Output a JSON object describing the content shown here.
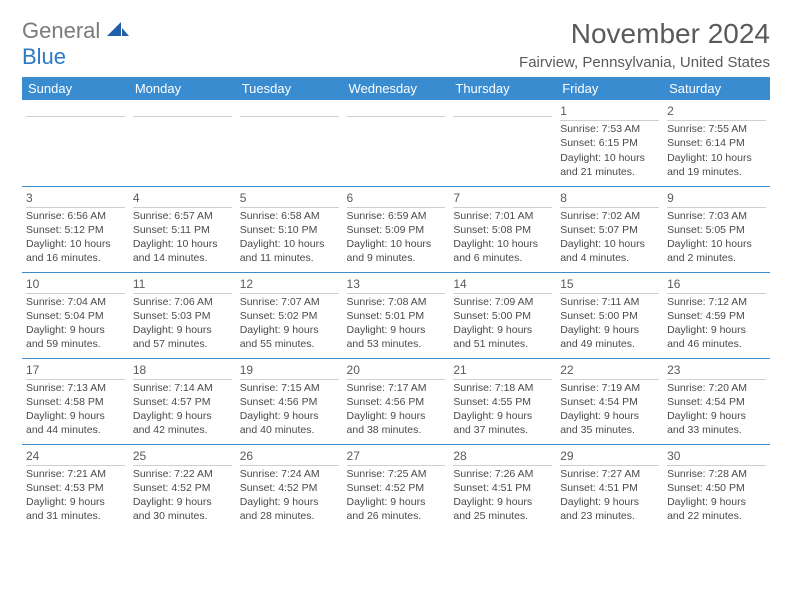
{
  "brand": {
    "general": "General",
    "blue": "Blue"
  },
  "title": "November 2024",
  "location": "Fairview, Pennsylvania, United States",
  "colors": {
    "header_bg": "#3a8cd1",
    "header_fg": "#ffffff",
    "rule": "#3a8cd1",
    "text": "#4a4a4a"
  },
  "day_headers": [
    "Sunday",
    "Monday",
    "Tuesday",
    "Wednesday",
    "Thursday",
    "Friday",
    "Saturday"
  ],
  "weeks": [
    [
      {
        "n": "",
        "sr": "",
        "ss": "",
        "dl": ""
      },
      {
        "n": "",
        "sr": "",
        "ss": "",
        "dl": ""
      },
      {
        "n": "",
        "sr": "",
        "ss": "",
        "dl": ""
      },
      {
        "n": "",
        "sr": "",
        "ss": "",
        "dl": ""
      },
      {
        "n": "",
        "sr": "",
        "ss": "",
        "dl": ""
      },
      {
        "n": "1",
        "sr": "Sunrise: 7:53 AM",
        "ss": "Sunset: 6:15 PM",
        "dl": "Daylight: 10 hours and 21 minutes."
      },
      {
        "n": "2",
        "sr": "Sunrise: 7:55 AM",
        "ss": "Sunset: 6:14 PM",
        "dl": "Daylight: 10 hours and 19 minutes."
      }
    ],
    [
      {
        "n": "3",
        "sr": "Sunrise: 6:56 AM",
        "ss": "Sunset: 5:12 PM",
        "dl": "Daylight: 10 hours and 16 minutes."
      },
      {
        "n": "4",
        "sr": "Sunrise: 6:57 AM",
        "ss": "Sunset: 5:11 PM",
        "dl": "Daylight: 10 hours and 14 minutes."
      },
      {
        "n": "5",
        "sr": "Sunrise: 6:58 AM",
        "ss": "Sunset: 5:10 PM",
        "dl": "Daylight: 10 hours and 11 minutes."
      },
      {
        "n": "6",
        "sr": "Sunrise: 6:59 AM",
        "ss": "Sunset: 5:09 PM",
        "dl": "Daylight: 10 hours and 9 minutes."
      },
      {
        "n": "7",
        "sr": "Sunrise: 7:01 AM",
        "ss": "Sunset: 5:08 PM",
        "dl": "Daylight: 10 hours and 6 minutes."
      },
      {
        "n": "8",
        "sr": "Sunrise: 7:02 AM",
        "ss": "Sunset: 5:07 PM",
        "dl": "Daylight: 10 hours and 4 minutes."
      },
      {
        "n": "9",
        "sr": "Sunrise: 7:03 AM",
        "ss": "Sunset: 5:05 PM",
        "dl": "Daylight: 10 hours and 2 minutes."
      }
    ],
    [
      {
        "n": "10",
        "sr": "Sunrise: 7:04 AM",
        "ss": "Sunset: 5:04 PM",
        "dl": "Daylight: 9 hours and 59 minutes."
      },
      {
        "n": "11",
        "sr": "Sunrise: 7:06 AM",
        "ss": "Sunset: 5:03 PM",
        "dl": "Daylight: 9 hours and 57 minutes."
      },
      {
        "n": "12",
        "sr": "Sunrise: 7:07 AM",
        "ss": "Sunset: 5:02 PM",
        "dl": "Daylight: 9 hours and 55 minutes."
      },
      {
        "n": "13",
        "sr": "Sunrise: 7:08 AM",
        "ss": "Sunset: 5:01 PM",
        "dl": "Daylight: 9 hours and 53 minutes."
      },
      {
        "n": "14",
        "sr": "Sunrise: 7:09 AM",
        "ss": "Sunset: 5:00 PM",
        "dl": "Daylight: 9 hours and 51 minutes."
      },
      {
        "n": "15",
        "sr": "Sunrise: 7:11 AM",
        "ss": "Sunset: 5:00 PM",
        "dl": "Daylight: 9 hours and 49 minutes."
      },
      {
        "n": "16",
        "sr": "Sunrise: 7:12 AM",
        "ss": "Sunset: 4:59 PM",
        "dl": "Daylight: 9 hours and 46 minutes."
      }
    ],
    [
      {
        "n": "17",
        "sr": "Sunrise: 7:13 AM",
        "ss": "Sunset: 4:58 PM",
        "dl": "Daylight: 9 hours and 44 minutes."
      },
      {
        "n": "18",
        "sr": "Sunrise: 7:14 AM",
        "ss": "Sunset: 4:57 PM",
        "dl": "Daylight: 9 hours and 42 minutes."
      },
      {
        "n": "19",
        "sr": "Sunrise: 7:15 AM",
        "ss": "Sunset: 4:56 PM",
        "dl": "Daylight: 9 hours and 40 minutes."
      },
      {
        "n": "20",
        "sr": "Sunrise: 7:17 AM",
        "ss": "Sunset: 4:56 PM",
        "dl": "Daylight: 9 hours and 38 minutes."
      },
      {
        "n": "21",
        "sr": "Sunrise: 7:18 AM",
        "ss": "Sunset: 4:55 PM",
        "dl": "Daylight: 9 hours and 37 minutes."
      },
      {
        "n": "22",
        "sr": "Sunrise: 7:19 AM",
        "ss": "Sunset: 4:54 PM",
        "dl": "Daylight: 9 hours and 35 minutes."
      },
      {
        "n": "23",
        "sr": "Sunrise: 7:20 AM",
        "ss": "Sunset: 4:54 PM",
        "dl": "Daylight: 9 hours and 33 minutes."
      }
    ],
    [
      {
        "n": "24",
        "sr": "Sunrise: 7:21 AM",
        "ss": "Sunset: 4:53 PM",
        "dl": "Daylight: 9 hours and 31 minutes."
      },
      {
        "n": "25",
        "sr": "Sunrise: 7:22 AM",
        "ss": "Sunset: 4:52 PM",
        "dl": "Daylight: 9 hours and 30 minutes."
      },
      {
        "n": "26",
        "sr": "Sunrise: 7:24 AM",
        "ss": "Sunset: 4:52 PM",
        "dl": "Daylight: 9 hours and 28 minutes."
      },
      {
        "n": "27",
        "sr": "Sunrise: 7:25 AM",
        "ss": "Sunset: 4:52 PM",
        "dl": "Daylight: 9 hours and 26 minutes."
      },
      {
        "n": "28",
        "sr": "Sunrise: 7:26 AM",
        "ss": "Sunset: 4:51 PM",
        "dl": "Daylight: 9 hours and 25 minutes."
      },
      {
        "n": "29",
        "sr": "Sunrise: 7:27 AM",
        "ss": "Sunset: 4:51 PM",
        "dl": "Daylight: 9 hours and 23 minutes."
      },
      {
        "n": "30",
        "sr": "Sunrise: 7:28 AM",
        "ss": "Sunset: 4:50 PM",
        "dl": "Daylight: 9 hours and 22 minutes."
      }
    ]
  ]
}
